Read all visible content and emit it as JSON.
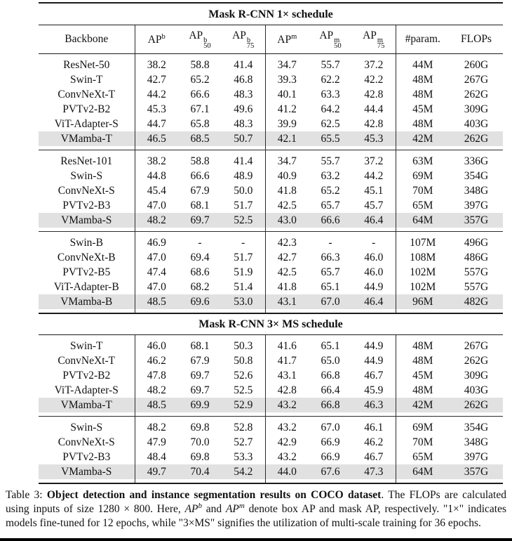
{
  "colors": {
    "highlight": "#e1e1e1",
    "rule": "#1b1b1b",
    "text": "#111111"
  },
  "table": {
    "header": [
      {
        "label": "Backbone"
      },
      {
        "base": "AP",
        "sup": "b",
        "sub": ""
      },
      {
        "base": "AP",
        "sup": "b",
        "sub": "50"
      },
      {
        "base": "AP",
        "sup": "b",
        "sub": "75"
      },
      {
        "base": "AP",
        "sup": "m",
        "sub": ""
      },
      {
        "base": "AP",
        "sup": "m",
        "sub": "50"
      },
      {
        "base": "AP",
        "sup": "m",
        "sub": "75"
      },
      {
        "label": "#param."
      },
      {
        "label": "FLOPs"
      }
    ],
    "sections": [
      {
        "title": "Mask R-CNN 1× schedule",
        "show_header": true,
        "blocks": [
          [
            {
              "backbone": "ResNet-50",
              "values": [
                "38.2",
                "58.8",
                "41.4",
                "34.7",
                "55.7",
                "37.2",
                "44M",
                "260G"
              ],
              "highlight": false
            },
            {
              "backbone": "Swin-T",
              "values": [
                "42.7",
                "65.2",
                "46.8",
                "39.3",
                "62.2",
                "42.2",
                "48M",
                "267G"
              ],
              "highlight": false
            },
            {
              "backbone": "ConvNeXt-T",
              "values": [
                "44.2",
                "66.6",
                "48.3",
                "40.1",
                "63.3",
                "42.8",
                "48M",
                "262G"
              ],
              "highlight": false
            },
            {
              "backbone": "PVTv2-B2",
              "values": [
                "45.3",
                "67.1",
                "49.6",
                "41.2",
                "64.2",
                "44.4",
                "45M",
                "309G"
              ],
              "highlight": false
            },
            {
              "backbone": "ViT-Adapter-S",
              "values": [
                "44.7",
                "65.8",
                "48.3",
                "39.9",
                "62.5",
                "42.8",
                "48M",
                "403G"
              ],
              "highlight": false
            },
            {
              "backbone": "VMamba-T",
              "values": [
                "46.5",
                "68.5",
                "50.7",
                "42.1",
                "65.5",
                "45.3",
                "42M",
                "262G"
              ],
              "highlight": true
            }
          ],
          [
            {
              "backbone": "ResNet-101",
              "values": [
                "38.2",
                "58.8",
                "41.4",
                "34.7",
                "55.7",
                "37.2",
                "63M",
                "336G"
              ],
              "highlight": false
            },
            {
              "backbone": "Swin-S",
              "values": [
                "44.8",
                "66.6",
                "48.9",
                "40.9",
                "63.2",
                "44.2",
                "69M",
                "354G"
              ],
              "highlight": false
            },
            {
              "backbone": "ConvNeXt-S",
              "values": [
                "45.4",
                "67.9",
                "50.0",
                "41.8",
                "65.2",
                "45.1",
                "70M",
                "348G"
              ],
              "highlight": false
            },
            {
              "backbone": "PVTv2-B3",
              "values": [
                "47.0",
                "68.1",
                "51.7",
                "42.5",
                "65.7",
                "45.7",
                "65M",
                "397G"
              ],
              "highlight": false
            },
            {
              "backbone": "VMamba-S",
              "values": [
                "48.2",
                "69.7",
                "52.5",
                "43.0",
                "66.6",
                "46.4",
                "64M",
                "357G"
              ],
              "highlight": true
            }
          ],
          [
            {
              "backbone": "Swin-B",
              "values": [
                "46.9",
                "-",
                "-",
                "42.3",
                "-",
                "-",
                "107M",
                "496G"
              ],
              "highlight": false
            },
            {
              "backbone": "ConvNeXt-B",
              "values": [
                "47.0",
                "69.4",
                "51.7",
                "42.7",
                "66.3",
                "46.0",
                "108M",
                "486G"
              ],
              "highlight": false
            },
            {
              "backbone": "PVTv2-B5",
              "values": [
                "47.4",
                "68.6",
                "51.9",
                "42.5",
                "65.7",
                "46.0",
                "102M",
                "557G"
              ],
              "highlight": false
            },
            {
              "backbone": "ViT-Adapter-B",
              "values": [
                "47.0",
                "68.2",
                "51.4",
                "41.8",
                "65.1",
                "44.9",
                "102M",
                "557G"
              ],
              "highlight": false
            },
            {
              "backbone": "VMamba-B",
              "values": [
                "48.5",
                "69.6",
                "53.0",
                "43.1",
                "67.0",
                "46.4",
                "96M",
                "482G"
              ],
              "highlight": true
            }
          ]
        ]
      },
      {
        "title": "Mask R-CNN 3× MS schedule",
        "show_header": false,
        "blocks": [
          [
            {
              "backbone": "Swin-T",
              "values": [
                "46.0",
                "68.1",
                "50.3",
                "41.6",
                "65.1",
                "44.9",
                "48M",
                "267G"
              ],
              "highlight": false
            },
            {
              "backbone": "ConvNeXt-T",
              "values": [
                "46.2",
                "67.9",
                "50.8",
                "41.7",
                "65.0",
                "44.9",
                "48M",
                "262G"
              ],
              "highlight": false
            },
            {
              "backbone": "PVTv2-B2",
              "values": [
                "47.8",
                "69.7",
                "52.6",
                "43.1",
                "66.8",
                "46.7",
                "45M",
                "309G"
              ],
              "highlight": false
            },
            {
              "backbone": "ViT-Adapter-S",
              "values": [
                "48.2",
                "69.7",
                "52.5",
                "42.8",
                "66.4",
                "45.9",
                "48M",
                "403G"
              ],
              "highlight": false
            },
            {
              "backbone": "VMamba-T",
              "values": [
                "48.5",
                "69.9",
                "52.9",
                "43.2",
                "66.8",
                "46.3",
                "42M",
                "262G"
              ],
              "highlight": true
            }
          ],
          [
            {
              "backbone": "Swin-S",
              "values": [
                "48.2",
                "69.8",
                "52.8",
                "43.2",
                "67.0",
                "46.1",
                "69M",
                "354G"
              ],
              "highlight": false
            },
            {
              "backbone": "ConvNeXt-S",
              "values": [
                "47.9",
                "70.0",
                "52.7",
                "42.9",
                "66.9",
                "46.2",
                "70M",
                "348G"
              ],
              "highlight": false
            },
            {
              "backbone": "PVTv2-B3",
              "values": [
                "48.4",
                "69.8",
                "53.3",
                "43.2",
                "66.9",
                "46.7",
                "65M",
                "397G"
              ],
              "highlight": false
            },
            {
              "backbone": "VMamba-S",
              "values": [
                "49.7",
                "70.4",
                "54.2",
                "44.0",
                "67.6",
                "47.3",
                "64M",
                "357G"
              ],
              "highlight": true
            }
          ]
        ]
      }
    ]
  },
  "caption": {
    "segments": [
      {
        "text": "Table 3: ",
        "style": "normal"
      },
      {
        "text": "Object detection and instance segmentation results on COCO dataset",
        "style": "bold"
      },
      {
        "text": ".  The FLOPs are calculated using inputs of size 1280 × 800. Here, ",
        "style": "normal"
      },
      {
        "text": "AP",
        "style": "italic"
      },
      {
        "text": "b",
        "style": "italic-sup"
      },
      {
        "text": " and ",
        "style": "normal"
      },
      {
        "text": "AP",
        "style": "italic"
      },
      {
        "text": "m",
        "style": "italic-sup"
      },
      {
        "text": " denote box AP and mask AP, respectively. \"1×\" indicates models fine-tuned for 12 epochs, while \"3×MS\" signifies the utilization of multi-scale training for 36 epochs.",
        "style": "normal"
      }
    ]
  }
}
